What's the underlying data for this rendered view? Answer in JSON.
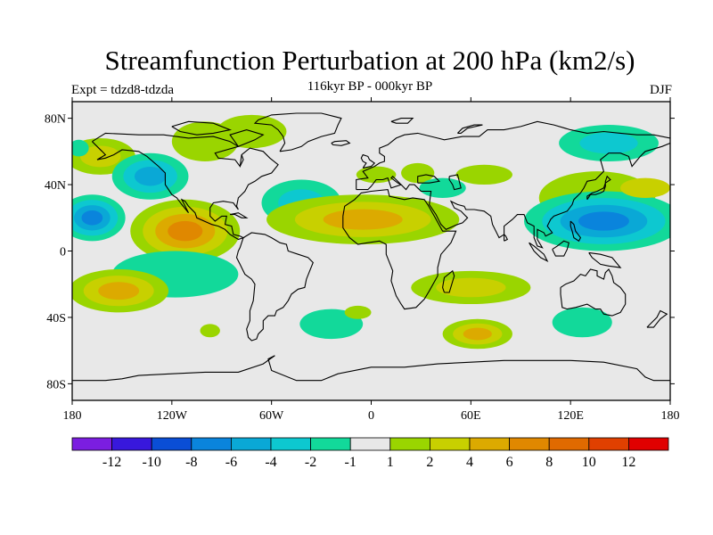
{
  "chart_data": {
    "type": "heatmap",
    "title": "Streamfunction Perturbation at 200 hPa (km2/s)",
    "subtitle": "116kyr BP - 000kyr BP",
    "left_label": "Expt = tdzd8-tdzda",
    "right_label": "DJF",
    "x_range": [
      -180,
      180
    ],
    "y_range": [
      -90,
      90
    ],
    "x_ticks": [
      {
        "value": -180,
        "label": "180"
      },
      {
        "value": -120,
        "label": "120W"
      },
      {
        "value": -60,
        "label": "60W"
      },
      {
        "value": 0,
        "label": "0"
      },
      {
        "value": 60,
        "label": "60E"
      },
      {
        "value": 120,
        "label": "120E"
      },
      {
        "value": 180,
        "label": "180"
      }
    ],
    "y_ticks": [
      {
        "value": 80,
        "label": "80N"
      },
      {
        "value": 40,
        "label": "40N"
      },
      {
        "value": 0,
        "label": "0"
      },
      {
        "value": -40,
        "label": "40S"
      },
      {
        "value": -80,
        "label": "80S"
      }
    ],
    "colorbar": {
      "colors": [
        "#7b1ee0",
        "#3818dc",
        "#0a4ed6",
        "#0a84dc",
        "#0aa8d6",
        "#0dc8d0",
        "#12d99a",
        "#e8e8e8",
        "#9ad500",
        "#c8d000",
        "#dcaa00",
        "#e08800",
        "#e06a00",
        "#e04000",
        "#e00000"
      ],
      "labels": [
        "-12",
        "-10",
        "-8",
        "-6",
        "-4",
        "-2",
        "-1",
        "1",
        "2",
        "4",
        "6",
        "8",
        "10",
        "12"
      ]
    },
    "blobs": [
      {
        "lon": -163,
        "lat": 57,
        "rlon": 21,
        "rlat": 11,
        "levels": [
          "#9ad500",
          "#c8d000"
        ]
      },
      {
        "lon": -133,
        "lat": 45,
        "rlon": 23,
        "rlat": 14,
        "levels": [
          "#12d99a",
          "#0dc8d0",
          "#0aa8d6"
        ]
      },
      {
        "lon": -100,
        "lat": 66,
        "rlon": 20,
        "rlat": 12,
        "levels": [
          "#9ad500"
        ]
      },
      {
        "lon": -72,
        "lat": 72,
        "rlon": 21,
        "rlat": 10,
        "levels": [
          "#9ad500"
        ]
      },
      {
        "lon": -168,
        "lat": 20,
        "rlon": 20,
        "rlat": 14,
        "levels": [
          "#12d99a",
          "#0dc8d0",
          "#0aa8d6",
          "#0a84dc"
        ]
      },
      {
        "lon": -112,
        "lat": 12,
        "rlon": 33,
        "rlat": 19,
        "levels": [
          "#9ad500",
          "#c8d000",
          "#dcaa00",
          "#e08800"
        ]
      },
      {
        "lon": -42,
        "lat": 29,
        "rlon": 24,
        "rlat": 14,
        "levels": [
          "#12d99a",
          "#0dc8d0"
        ]
      },
      {
        "lon": -118,
        "lat": -14,
        "rlon": 38,
        "rlat": 14,
        "levels": [
          "#12d99a"
        ]
      },
      {
        "lon": -152,
        "lat": -24,
        "rlon": 30,
        "rlat": 13,
        "levels": [
          "#9ad500",
          "#c8d000",
          "#dcaa00"
        ]
      },
      {
        "lon": -97,
        "lat": -48,
        "rlon": 6,
        "rlat": 4,
        "levels": [
          "#9ad500"
        ]
      },
      {
        "lon": -24,
        "lat": -44,
        "rlon": 19,
        "rlat": 9,
        "levels": [
          "#12d99a"
        ]
      },
      {
        "lon": -5,
        "lat": 19,
        "rlon": 58,
        "rlat": 15,
        "levels": [
          "#9ad500",
          "#c8d000",
          "#dcaa00"
        ]
      },
      {
        "lon": 3,
        "lat": 46,
        "rlon": 12,
        "rlat": 5,
        "levels": [
          "#9ad500"
        ]
      },
      {
        "lon": 28,
        "lat": 47,
        "rlon": 10,
        "rlat": 6,
        "levels": [
          "#9ad500"
        ]
      },
      {
        "lon": 43,
        "lat": 38,
        "rlon": 14,
        "rlat": 6,
        "levels": [
          "#12d99a"
        ]
      },
      {
        "lon": 68,
        "lat": 46,
        "rlon": 17,
        "rlat": 6,
        "levels": [
          "#9ad500"
        ]
      },
      {
        "lon": 60,
        "lat": -22,
        "rlon": 36,
        "rlat": 10,
        "levels": [
          "#9ad500",
          "#c8d000"
        ]
      },
      {
        "lon": -8,
        "lat": -37,
        "rlon": 8,
        "rlat": 4,
        "levels": [
          "#9ad500"
        ]
      },
      {
        "lon": 64,
        "lat": -50,
        "rlon": 21,
        "rlat": 9,
        "levels": [
          "#9ad500",
          "#c8d000",
          "#dcaa00"
        ]
      },
      {
        "lon": 127,
        "lat": -43,
        "rlon": 18,
        "rlat": 9,
        "levels": [
          "#12d99a"
        ]
      },
      {
        "lon": 136,
        "lat": 32,
        "rlon": 35,
        "rlat": 16,
        "levels": [
          "#9ad500"
        ]
      },
      {
        "lon": 143,
        "lat": 65,
        "rlon": 30,
        "rlat": 11,
        "levels": [
          "#12d99a",
          "#0dc8d0"
        ]
      },
      {
        "lon": 140,
        "lat": 18,
        "rlon": 48,
        "rlat": 18,
        "levels": [
          "#12d99a",
          "#0dc8d0",
          "#0aa8d6",
          "#0a84dc"
        ]
      },
      {
        "lon": 165,
        "lat": 38,
        "rlon": 15,
        "rlat": 6,
        "levels": [
          "#c8d000"
        ]
      },
      {
        "lon": -176,
        "lat": 62,
        "rlon": 6,
        "rlat": 5,
        "levels": [
          "#12d99a"
        ]
      }
    ]
  }
}
